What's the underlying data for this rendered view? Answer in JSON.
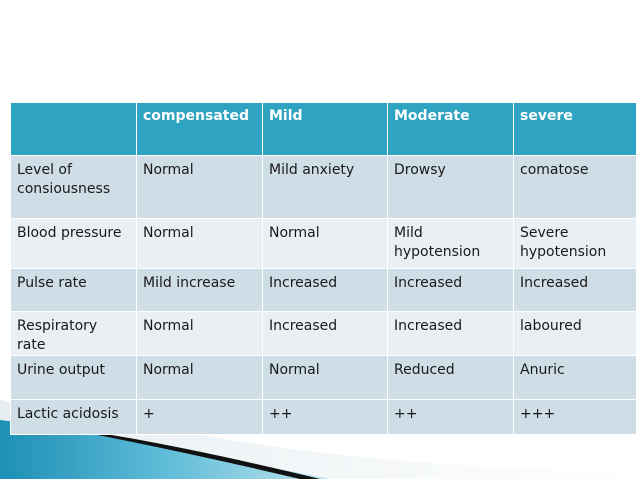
{
  "table": {
    "headers": [
      "",
      "compensated",
      "Mild",
      "Moderate",
      "severe"
    ],
    "rows": [
      {
        "label": "Level of consiousness",
        "cells": [
          "Normal",
          "Mild anxiety",
          "Drowsy",
          "comatose"
        ]
      },
      {
        "label": "Blood pressure",
        "cells": [
          "Normal",
          "Normal",
          "Mild hypotension",
          "Severe hypotension"
        ]
      },
      {
        "label": "Pulse rate",
        "cells": [
          "Mild increase",
          "Increased",
          "Increased",
          "Increased"
        ]
      },
      {
        "label": "Respiratory rate",
        "cells": [
          "Normal",
          "Increased",
          "Increased",
          "laboured"
        ]
      },
      {
        "label": "Urine output",
        "cells": [
          "Normal",
          "Normal",
          "Reduced",
          "Anuric"
        ]
      },
      {
        "label": "Lactic acidosis",
        "cells": [
          "+",
          "++",
          "++",
          "+++"
        ]
      }
    ]
  },
  "colors": {
    "header_bg": "#2fa3c2",
    "row_dark": "#cfdde6",
    "row_light": "#e9eff3",
    "accent_swoosh": "#37a6c8"
  }
}
